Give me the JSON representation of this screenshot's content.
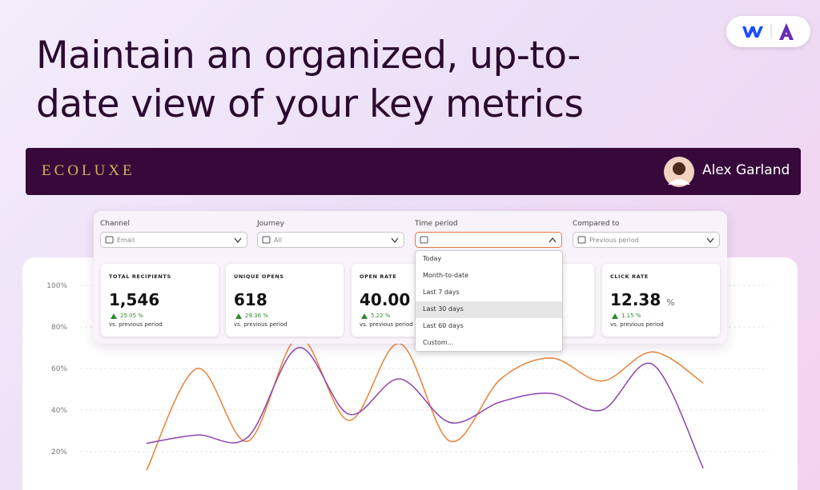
{
  "header": {
    "title_lines": [
      "Maintain an organized, up-to-",
      "date view of your key metrics"
    ]
  },
  "app_bar": {
    "brand": "ECOLUXE",
    "user": "Alex Garland"
  },
  "filters": [
    {
      "label": "Channel",
      "value": "Email"
    },
    {
      "label": "Journey",
      "value": "All"
    },
    {
      "label": "Time period"
    },
    {
      "label": "Compared to",
      "value": "Previous period"
    }
  ],
  "time_period_menu": {
    "options": [
      "Today",
      "Month-to-date",
      "Last 7 days",
      "Last 30 days",
      "Last 60 days",
      "Custom..."
    ],
    "highlighted_index": 3
  },
  "metrics": [
    {
      "label": "TOTAL RECIPIENTS",
      "value": "1,546",
      "change": "25.05 %",
      "comparison": "vs. previous period"
    },
    {
      "label": "UNIQUE OPENS",
      "value": "618",
      "change": "29.36 %",
      "comparison": "vs. previous period"
    },
    {
      "label": "OPEN RATE",
      "value": "40.00",
      "unit": "%",
      "change": "5.22 %",
      "comparison": "vs. previous period"
    },
    {
      "label": "CLICK RATE",
      "value": "12.38",
      "unit": "%",
      "change": "1.15 %",
      "comparison": "vs. previous period"
    }
  ],
  "chart": {
    "type": "line",
    "ylim": [
      0,
      100
    ],
    "yticks": [
      {
        "value": 20,
        "label": "20%"
      },
      {
        "value": 40,
        "label": "40%"
      },
      {
        "value": 60,
        "label": "60%"
      },
      {
        "value": 80,
        "label": "80%"
      },
      {
        "value": 100,
        "label": "100%"
      }
    ],
    "grid": true,
    "series": [
      {
        "color": "#e8833a",
        "values": [
          11,
          60,
          25,
          75,
          35,
          72,
          25,
          55,
          65,
          54,
          68,
          53
        ]
      },
      {
        "color": "#8e44ad",
        "values": [
          24,
          28,
          27,
          70,
          38,
          55,
          34,
          44,
          48,
          40,
          62,
          12
        ]
      }
    ]
  }
}
